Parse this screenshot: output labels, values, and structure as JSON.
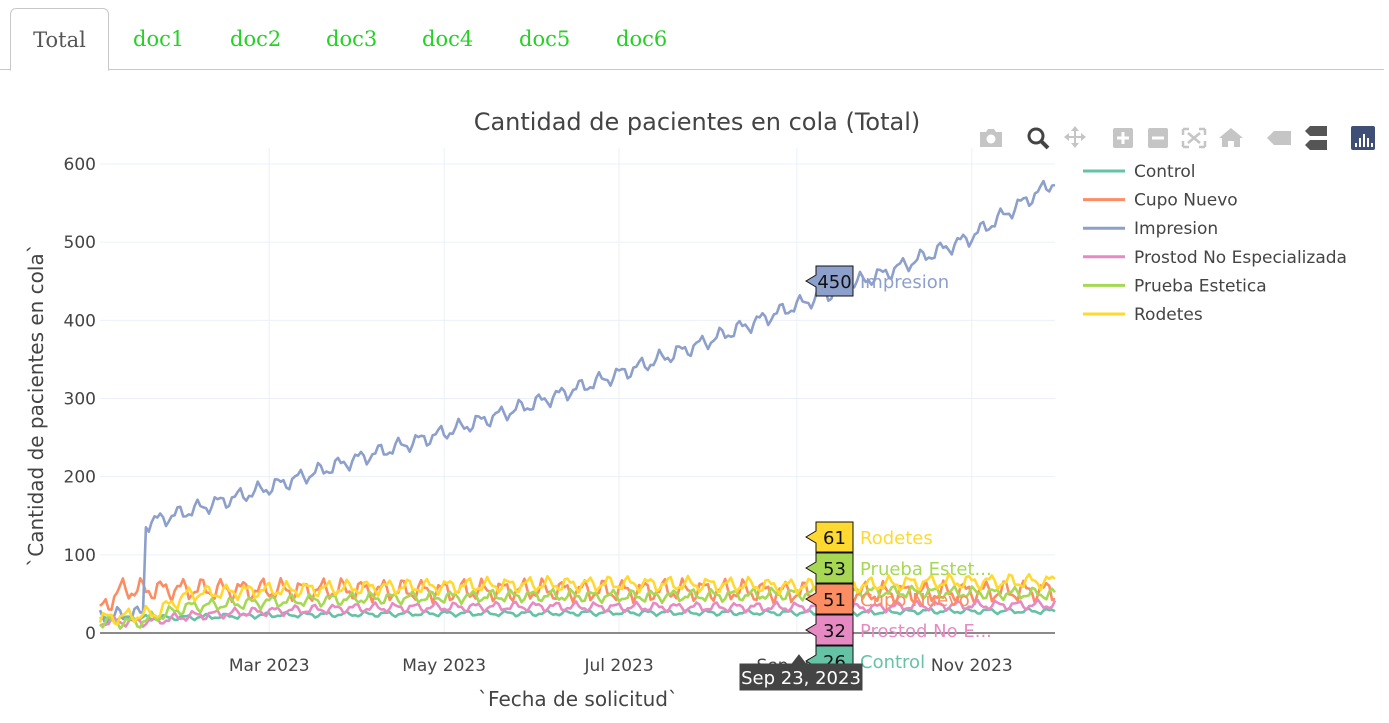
{
  "tabs": [
    {
      "label": "Total",
      "active": true
    },
    {
      "label": "doc1",
      "active": false
    },
    {
      "label": "doc2",
      "active": false
    },
    {
      "label": "doc3",
      "active": false
    },
    {
      "label": "doc4",
      "active": false
    },
    {
      "label": "doc5",
      "active": false
    },
    {
      "label": "doc6",
      "active": false
    }
  ],
  "modebar": {
    "icons": [
      "camera-icon",
      "zoom-icon",
      "pan-icon",
      "zoom-in-icon",
      "zoom-out-icon",
      "autoscale-icon",
      "reset-axes-icon",
      "spike-lines-icon",
      "compare-data-icon",
      "plotly-logo-icon"
    ],
    "active_color": "#444444",
    "inactive_color": "#c5c5c5",
    "logo_color": "#3f4f75"
  },
  "hover": {
    "x_label": "Sep 23, 2023",
    "items": [
      {
        "series": "Impresion",
        "value": "450",
        "label": "Impresion"
      },
      {
        "series": "Rodetes",
        "value": "61",
        "label": "Rodetes"
      },
      {
        "series": "Prueba Estetica",
        "value": "53",
        "label": "Prueba Estet..."
      },
      {
        "series": "Cupo Nuevo",
        "value": "51",
        "label": "Cupo Nuevo"
      },
      {
        "series": "Prostod No Especializada",
        "value": "32",
        "label": "Prostod No E..."
      },
      {
        "series": "Control",
        "value": "26",
        "label": "Control"
      }
    ]
  },
  "chart_data": {
    "type": "line",
    "title": "Cantidad de pacientes en cola (Total)",
    "xlabel": "`Fecha de solicitud`",
    "ylabel": "`Cantidad de pacientes en cola`",
    "x_range": [
      "2023-01-01",
      "2023-11-30"
    ],
    "ylim": [
      0,
      600
    ],
    "y_ticks": [
      0,
      100,
      200,
      300,
      400,
      500,
      600
    ],
    "x_ticks": [
      {
        "date": "2023-03-01",
        "label": "Mar 2023"
      },
      {
        "date": "2023-05-01",
        "label": "May 2023"
      },
      {
        "date": "2023-07-01",
        "label": "Jul 2023"
      },
      {
        "date": "2023-09-01",
        "label": "Sep 2023"
      },
      {
        "date": "2023-11-01",
        "label": "Nov 2023"
      }
    ],
    "grid": true,
    "legend_position": "right",
    "series": [
      {
        "name": "Control",
        "color": "#66c2a5",
        "points": [
          [
            "2023-01-01",
            18
          ],
          [
            "2023-02-01",
            20
          ],
          [
            "2023-03-01",
            23
          ],
          [
            "2023-04-01",
            24
          ],
          [
            "2023-05-01",
            25
          ],
          [
            "2023-06-01",
            25
          ],
          [
            "2023-07-01",
            26
          ],
          [
            "2023-08-01",
            26
          ],
          [
            "2023-09-01",
            26
          ],
          [
            "2023-09-23",
            26
          ],
          [
            "2023-10-15",
            28
          ],
          [
            "2023-11-30",
            28
          ]
        ],
        "wobble": 4
      },
      {
        "name": "Cupo Nuevo",
        "color": "#fc8d62",
        "points": [
          [
            "2023-01-01",
            28
          ],
          [
            "2023-01-08",
            55
          ],
          [
            "2023-02-01",
            56
          ],
          [
            "2023-03-01",
            55
          ],
          [
            "2023-04-01",
            55
          ],
          [
            "2023-05-01",
            54
          ],
          [
            "2023-06-01",
            55
          ],
          [
            "2023-07-01",
            54
          ],
          [
            "2023-08-01",
            55
          ],
          [
            "2023-09-01",
            52
          ],
          [
            "2023-09-23",
            51
          ],
          [
            "2023-10-15",
            52
          ],
          [
            "2023-11-30",
            54
          ]
        ],
        "wobble": 16
      },
      {
        "name": "Impresion",
        "color": "#8da0cb",
        "points": [
          [
            "2023-01-01",
            20
          ],
          [
            "2023-01-16",
            25
          ],
          [
            "2023-01-17",
            140
          ],
          [
            "2023-01-31",
            155
          ],
          [
            "2023-02-28",
            185
          ],
          [
            "2023-03-31",
            222
          ],
          [
            "2023-04-30",
            255
          ],
          [
            "2023-05-31",
            292
          ],
          [
            "2023-06-30",
            330
          ],
          [
            "2023-07-31",
            372
          ],
          [
            "2023-08-31",
            418
          ],
          [
            "2023-09-23",
            450
          ],
          [
            "2023-09-30",
            458
          ],
          [
            "2023-10-31",
            505
          ],
          [
            "2023-11-30",
            578
          ]
        ],
        "wobble": 12
      },
      {
        "name": "Prostod No Especializada",
        "color": "#e78ac3",
        "points": [
          [
            "2023-01-01",
            14
          ],
          [
            "2023-01-20",
            15
          ],
          [
            "2023-02-01",
            22
          ],
          [
            "2023-03-01",
            28
          ],
          [
            "2023-04-01",
            32
          ],
          [
            "2023-05-01",
            33
          ],
          [
            "2023-06-01",
            34
          ],
          [
            "2023-07-01",
            33
          ],
          [
            "2023-08-01",
            33
          ],
          [
            "2023-09-01",
            33
          ],
          [
            "2023-09-23",
            32
          ],
          [
            "2023-10-15",
            35
          ],
          [
            "2023-11-30",
            36
          ]
        ],
        "wobble": 7
      },
      {
        "name": "Prueba Estetica",
        "color": "#a6d854",
        "points": [
          [
            "2023-01-01",
            14
          ],
          [
            "2023-01-15",
            14
          ],
          [
            "2023-02-01",
            34
          ],
          [
            "2023-03-01",
            40
          ],
          [
            "2023-04-01",
            44
          ],
          [
            "2023-05-01",
            46
          ],
          [
            "2023-06-01",
            48
          ],
          [
            "2023-07-01",
            47
          ],
          [
            "2023-08-01",
            48
          ],
          [
            "2023-09-01",
            50
          ],
          [
            "2023-09-23",
            53
          ],
          [
            "2023-10-15",
            52
          ],
          [
            "2023-11-30",
            50
          ]
        ],
        "wobble": 9
      },
      {
        "name": "Rodetes",
        "color": "#ffd92f",
        "points": [
          [
            "2023-01-01",
            18
          ],
          [
            "2023-01-20",
            25
          ],
          [
            "2023-02-01",
            50
          ],
          [
            "2023-03-01",
            55
          ],
          [
            "2023-04-01",
            58
          ],
          [
            "2023-05-01",
            60
          ],
          [
            "2023-06-01",
            62
          ],
          [
            "2023-07-01",
            63
          ],
          [
            "2023-08-01",
            62
          ],
          [
            "2023-09-01",
            60
          ],
          [
            "2023-09-23",
            61
          ],
          [
            "2023-10-15",
            65
          ],
          [
            "2023-11-30",
            66
          ]
        ],
        "wobble": 11
      }
    ]
  }
}
